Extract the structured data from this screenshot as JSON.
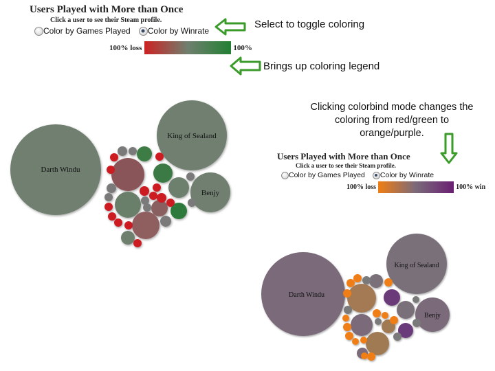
{
  "top_panel": {
    "title": "Users Played with More than Once",
    "subtitle": "Click a user to see their Steam profile.",
    "radio_games": "Color by Games Played",
    "radio_winrate": "Color by Winrate",
    "legend_left": "100% loss",
    "legend_right": "100%",
    "legend_colors": [
      "#cc2222",
      "#6f7f6f",
      "#238033"
    ]
  },
  "bottom_panel": {
    "title": "Users Played with More than Once",
    "subtitle": "Click a user to see their Steam profile.",
    "radio_games": "Color by Games Played",
    "radio_winrate": "Color by Winrate",
    "legend_left": "100% loss",
    "legend_right": "100% win",
    "legend_colors": [
      "#f07e14",
      "#7a6a7a",
      "#6a1f72"
    ]
  },
  "annotations": {
    "toggle": "Select to toggle coloring",
    "legend": "Brings up coloring legend",
    "colorblind": "Clicking colorbind mode changes the coloring from red/green to orange/purple."
  },
  "bubbles": {
    "darth": "Darth Windu",
    "king": "King of Sealand",
    "benjy": "Benjy"
  },
  "colors": {
    "arrow_green": "#3a9a2a",
    "neutral_gray": "#7a857a",
    "purple_gray": "#7a6a7a"
  }
}
